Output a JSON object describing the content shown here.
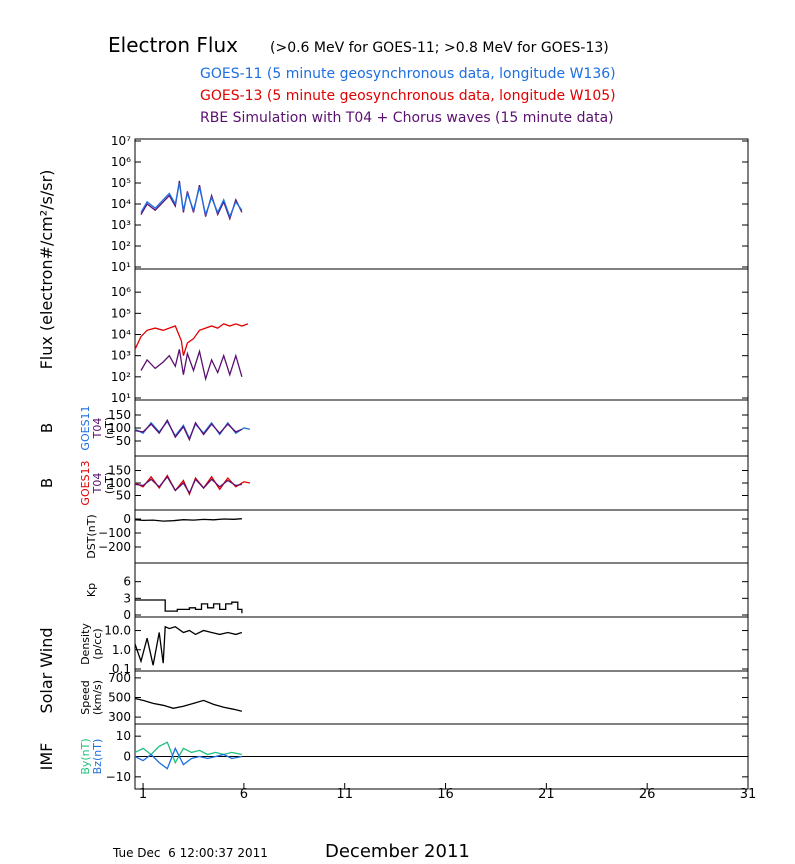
{
  "header": {
    "title_main": "Electron Flux",
    "title_sub": "(>0.6 MeV for GOES-11; >0.8 MeV for GOES-13)",
    "legend": [
      {
        "text": "GOES-11 (5 minute geosynchronous data, longitude W136)",
        "color": "#1e6fe0"
      },
      {
        "text": "GOES-13 (5 minute geosynchronous data, longitude W105)",
        "color": "#e00000"
      },
      {
        "text": "RBE Simulation with T04 + Chorus waves (15 minute data)",
        "color": "#5a1070"
      }
    ]
  },
  "footer": {
    "timestamp": "Tue Dec  6 12:00:37 2011",
    "month_label": "December 2011"
  },
  "colors": {
    "goes11": "#1e6fe0",
    "goes13": "#e00000",
    "rbe": "#5a1070",
    "by": "#20c080",
    "bz": "#1e6fe0",
    "black": "#000000"
  },
  "chart_data": {
    "type": "line",
    "x_label": "December 2011",
    "x_ticks": [
      1,
      6,
      11,
      16,
      21,
      26,
      31
    ],
    "xlim": [
      0.6,
      31
    ],
    "group_labels": [
      {
        "text": "Flux (electron#/cm²/s/sr)",
        "panels": [
          "flux_goes11",
          "flux_goes13"
        ]
      },
      {
        "text": "Solar Wind",
        "panels": [
          "density",
          "speed"
        ]
      },
      {
        "text": "IMF",
        "panels": [
          "imf"
        ]
      }
    ],
    "panels": [
      {
        "id": "flux_goes11",
        "scale": "log",
        "ylim": [
          1,
          7
        ],
        "ytick_labels": [
          "10¹",
          "10²",
          "10³",
          "10⁴",
          "10⁵",
          "10⁶",
          "10⁷"
        ],
        "ytick_values": [
          1,
          2,
          3,
          4,
          5,
          6,
          7
        ],
        "ylabel": [],
        "series": [
          {
            "name": "RBE Simulation with T04 + Chorus waves (15 minute data)",
            "color": "#5a1070",
            "x": [
              0.9,
              1.2,
              1.6,
              2.0,
              2.3,
              2.6,
              2.8,
              3.0,
              3.2,
              3.5,
              3.8,
              4.1,
              4.4,
              4.7,
              5.0,
              5.3,
              5.6,
              5.9
            ],
            "y": [
              3.5,
              4.0,
              3.7,
              4.1,
              4.4,
              3.9,
              5.1,
              3.6,
              4.6,
              3.6,
              4.9,
              3.4,
              4.4,
              3.5,
              4.1,
              3.3,
              4.2,
              3.6
            ]
          },
          {
            "name": "GOES-11 (5 minute geosynchronous data, longitude W136)",
            "color": "#1e6fe0",
            "x": [
              0.9,
              1.2,
              1.6,
              2.0,
              2.3,
              2.6,
              2.8,
              3.0,
              3.2,
              3.5,
              3.8,
              4.1,
              4.4,
              4.7,
              5.0,
              5.3,
              5.6,
              5.9
            ],
            "y": [
              3.6,
              4.1,
              3.8,
              4.2,
              4.5,
              4.0,
              5.0,
              3.7,
              4.5,
              3.7,
              4.8,
              3.5,
              4.3,
              3.6,
              4.2,
              3.4,
              4.1,
              3.7
            ]
          }
        ]
      },
      {
        "id": "flux_goes13",
        "scale": "log",
        "ylim": [
          1,
          7
        ],
        "ytick_labels": [
          "10¹",
          "10²",
          "10³",
          "10⁴",
          "10⁵",
          "10⁶"
        ],
        "ytick_values": [
          1,
          2,
          3,
          4,
          5,
          6
        ],
        "ylabel": [],
        "series": [
          {
            "name": "GOES-13 (5 minute geosynchronous data, longitude W105)",
            "color": "#e00000",
            "x": [
              0.6,
              0.9,
              1.2,
              1.6,
              2.0,
              2.3,
              2.6,
              2.9,
              3.0,
              3.2,
              3.5,
              3.8,
              4.1,
              4.4,
              4.7,
              5.0,
              5.3,
              5.6,
              5.9,
              6.2
            ],
            "y": [
              3.3,
              3.9,
              4.2,
              4.3,
              4.2,
              4.3,
              4.4,
              3.7,
              3.0,
              3.6,
              3.8,
              4.2,
              4.3,
              4.4,
              4.3,
              4.5,
              4.4,
              4.5,
              4.4,
              4.5
            ]
          },
          {
            "name": "RBE Simulation with T04 + Chorus waves (15 minute data)",
            "color": "#5a1070",
            "x": [
              0.9,
              1.2,
              1.6,
              2.0,
              2.3,
              2.6,
              2.8,
              3.0,
              3.2,
              3.5,
              3.8,
              4.1,
              4.4,
              4.7,
              5.0,
              5.3,
              5.6,
              5.9
            ],
            "y": [
              2.3,
              2.8,
              2.4,
              2.7,
              3.0,
              2.5,
              3.3,
              2.1,
              3.1,
              2.3,
              3.2,
              1.9,
              2.8,
              2.2,
              3.0,
              2.1,
              3.0,
              2.0
            ]
          }
        ]
      },
      {
        "id": "b_goes11",
        "scale": "linear",
        "ylim": [
          0,
          200
        ],
        "ytick_labels": [
          "50",
          "100",
          "150"
        ],
        "ytick_values": [
          50,
          100,
          150
        ],
        "ylabel": [
          {
            "text": "B",
            "color": "#000000"
          },
          {
            "text": "GOES11",
            "color": "#1e6fe0"
          },
          {
            "text": "T04",
            "color": "#5a1070"
          },
          {
            "text": "(nT)",
            "color": "#000000"
          }
        ],
        "series": [
          {
            "name": "GOES11",
            "color": "#1e6fe0",
            "x": [
              0.6,
              1.0,
              1.4,
              1.8,
              2.2,
              2.6,
              3.0,
              3.3,
              3.6,
              4.0,
              4.4,
              4.8,
              5.2,
              5.6,
              6.0,
              6.3
            ],
            "y": [
              95,
              80,
              120,
              85,
              125,
              70,
              110,
              60,
              115,
              80,
              120,
              75,
              120,
              80,
              100,
              95
            ]
          },
          {
            "name": "T04",
            "color": "#5a1070",
            "x": [
              0.6,
              1.0,
              1.4,
              1.8,
              2.2,
              2.6,
              3.0,
              3.3,
              3.6,
              4.0,
              4.4,
              4.8,
              5.2,
              5.6,
              5.9
            ],
            "y": [
              90,
              85,
              115,
              80,
              130,
              65,
              105,
              55,
              120,
              75,
              115,
              80,
              115,
              85,
              95
            ]
          }
        ]
      },
      {
        "id": "b_goes13",
        "scale": "linear",
        "ylim": [
          0,
          200
        ],
        "ytick_labels": [
          "50",
          "100",
          "150"
        ],
        "ytick_values": [
          50,
          100,
          150
        ],
        "ylabel": [
          {
            "text": "B",
            "color": "#000000"
          },
          {
            "text": "GOES13",
            "color": "#e00000"
          },
          {
            "text": "T04",
            "color": "#5a1070"
          },
          {
            "text": "(nT)",
            "color": "#000000"
          }
        ],
        "series": [
          {
            "name": "GOES13",
            "color": "#e00000",
            "x": [
              0.6,
              1.0,
              1.4,
              1.8,
              2.2,
              2.6,
              3.0,
              3.3,
              3.6,
              4.0,
              4.4,
              4.8,
              5.2,
              5.6,
              6.0,
              6.3
            ],
            "y": [
              100,
              85,
              125,
              80,
              130,
              70,
              110,
              55,
              120,
              80,
              125,
              75,
              120,
              85,
              105,
              100
            ]
          },
          {
            "name": "T04",
            "color": "#5a1070",
            "x": [
              0.6,
              1.0,
              1.4,
              1.8,
              2.2,
              2.6,
              3.0,
              3.3,
              3.6,
              4.0,
              4.4,
              4.8,
              5.2,
              5.6,
              5.9
            ],
            "y": [
              95,
              90,
              115,
              85,
              125,
              70,
              100,
              60,
              115,
              80,
              115,
              85,
              110,
              90,
              95
            ]
          }
        ]
      },
      {
        "id": "dst",
        "scale": "linear",
        "ylim": [
          -300,
          50
        ],
        "ytick_labels": [
          "0",
          "−100",
          "−200"
        ],
        "ytick_values": [
          0,
          -100,
          -200
        ],
        "ylabel": [
          {
            "text": "DST(nT)",
            "color": "#000000"
          }
        ],
        "series": [
          {
            "name": "DST",
            "color": "#000000",
            "x": [
              0.6,
              1.0,
              1.5,
              2.0,
              2.5,
              3.0,
              3.5,
              4.0,
              4.5,
              5.0,
              5.5,
              5.9
            ],
            "y": [
              -5,
              -10,
              -8,
              -15,
              -12,
              -5,
              -8,
              -3,
              -6,
              0,
              -2,
              2
            ]
          }
        ]
      },
      {
        "id": "kp",
        "scale": "linear",
        "ylim": [
          0,
          9
        ],
        "ytick_labels": [
          "0",
          "3",
          "6"
        ],
        "ytick_values": [
          0,
          3,
          6
        ],
        "ylabel": [
          {
            "text": "Kp",
            "color": "#000000"
          }
        ],
        "series": [
          {
            "name": "Kp",
            "color": "#000000",
            "style": "step",
            "x": [
              0.6,
              0.9,
              1.2,
              1.5,
              1.8,
              2.1,
              2.4,
              2.7,
              3.0,
              3.3,
              3.6,
              3.9,
              4.2,
              4.5,
              4.8,
              5.1,
              5.4,
              5.7,
              5.9
            ],
            "y": [
              2.7,
              2.7,
              2.7,
              2.7,
              2.7,
              0.7,
              0.7,
              1.0,
              1.0,
              1.3,
              1.0,
              2.0,
              1.3,
              2.0,
              1.0,
              2.0,
              2.3,
              1.0,
              0.3
            ]
          }
        ]
      },
      {
        "id": "density",
        "scale": "log",
        "ylim": [
          -1,
          1.6
        ],
        "ytick_labels": [
          "0.1",
          "1.0",
          "10.0"
        ],
        "ytick_values": [
          -1,
          0,
          1
        ],
        "ylabel": [
          {
            "text": "Density",
            "color": "#000000"
          },
          {
            "text": "(p/cc)",
            "color": "#000000"
          }
        ],
        "series": [
          {
            "name": "Density",
            "color": "#000000",
            "x": [
              0.6,
              0.9,
              1.2,
              1.5,
              1.8,
              2.0,
              2.1,
              2.3,
              2.6,
              3.0,
              3.3,
              3.6,
              4.0,
              4.4,
              4.8,
              5.2,
              5.6,
              5.9
            ],
            "y": [
              0.3,
              -0.6,
              0.6,
              -0.8,
              0.9,
              -0.7,
              1.2,
              1.1,
              1.2,
              0.9,
              1.0,
              0.8,
              1.0,
              0.9,
              0.8,
              0.9,
              0.8,
              0.9
            ]
          }
        ]
      },
      {
        "id": "speed",
        "scale": "linear",
        "ylim": [
          250,
          750
        ],
        "ytick_labels": [
          "300",
          "500",
          "700"
        ],
        "ytick_values": [
          300,
          500,
          700
        ],
        "ylabel": [
          {
            "text": "Speed",
            "color": "#000000"
          },
          {
            "text": "(km/s)",
            "color": "#000000"
          }
        ],
        "series": [
          {
            "name": "Speed",
            "color": "#000000",
            "x": [
              0.6,
              1.0,
              1.5,
              2.0,
              2.5,
              3.0,
              3.5,
              4.0,
              4.5,
              5.0,
              5.5,
              5.9
            ],
            "y": [
              490,
              470,
              440,
              420,
              390,
              410,
              440,
              470,
              430,
              400,
              380,
              360
            ]
          }
        ]
      },
      {
        "id": "imf",
        "scale": "linear",
        "ylim": [
          -15,
          15
        ],
        "ytick_labels": [
          "10",
          "0",
          "−10"
        ],
        "ytick_values": [
          10,
          0,
          -10
        ],
        "ylabel": [
          {
            "text": "By(nT)",
            "color": "#20c080"
          },
          {
            "text": "Bz(nT)",
            "color": "#1e6fe0"
          }
        ],
        "zero_line": true,
        "series": [
          {
            "name": "By(nT)",
            "color": "#20c080",
            "x": [
              0.6,
              1.0,
              1.4,
              1.8,
              2.2,
              2.6,
              3.0,
              3.4,
              3.8,
              4.2,
              4.6,
              5.0,
              5.4,
              5.9
            ],
            "y": [
              2,
              4,
              1,
              5,
              7,
              -3,
              4,
              2,
              3,
              1,
              2,
              1,
              2,
              1
            ]
          },
          {
            "name": "Bz(nT)",
            "color": "#1e6fe0",
            "x": [
              0.6,
              1.0,
              1.4,
              1.8,
              2.2,
              2.6,
              3.0,
              3.4,
              3.8,
              4.2,
              4.6,
              5.0,
              5.4,
              5.9
            ],
            "y": [
              0,
              -2,
              1,
              -3,
              -6,
              4,
              -4,
              -1,
              0,
              -1,
              0,
              1,
              -1,
              0
            ]
          }
        ]
      }
    ]
  }
}
